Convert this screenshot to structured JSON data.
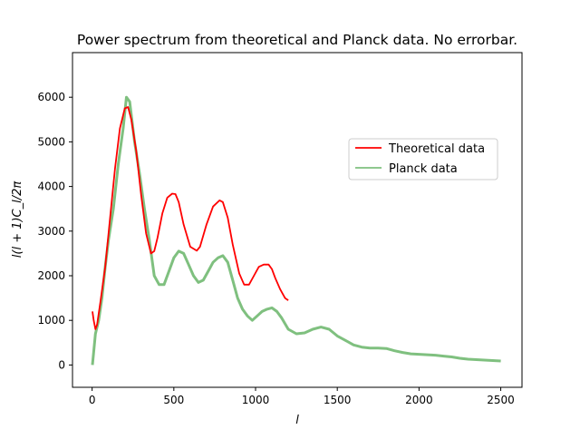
{
  "chart_data": {
    "type": "line",
    "title": "Power spectrum from theoretical and Planck data. No errorbar.",
    "xlabel": "l",
    "ylabel": "l(l + 1)C_l/2π",
    "xlim": [
      -120,
      2630
    ],
    "ylim": [
      -500,
      7000
    ],
    "xticks": [
      0,
      500,
      1000,
      1500,
      2000,
      2500
    ],
    "yticks": [
      0,
      1000,
      2000,
      3000,
      4000,
      5000,
      6000
    ],
    "xtick_labels": [
      "0",
      "500",
      "1000",
      "1500",
      "2000",
      "2500"
    ],
    "ytick_labels": [
      "0",
      "1000",
      "2000",
      "3000",
      "4000",
      "5000",
      "6000"
    ],
    "grid": false,
    "legend_position": "center-right",
    "series": [
      {
        "name": "Theoretical data",
        "color": "#ff0000",
        "x": [
          2,
          10,
          20,
          30,
          50,
          80,
          110,
          140,
          170,
          200,
          220,
          240,
          270,
          300,
          330,
          360,
          380,
          400,
          430,
          460,
          490,
          510,
          530,
          560,
          600,
          640,
          660,
          700,
          740,
          780,
          800,
          830,
          860,
          900,
          930,
          960,
          990,
          1020,
          1050,
          1080,
          1100,
          1120,
          1150,
          1180,
          1200
        ],
        "y": [
          1200,
          1000,
          800,
          900,
          1400,
          2200,
          3300,
          4400,
          5300,
          5750,
          5780,
          5500,
          4800,
          3800,
          2950,
          2500,
          2550,
          2850,
          3400,
          3750,
          3840,
          3830,
          3650,
          3150,
          2650,
          2560,
          2650,
          3150,
          3550,
          3690,
          3650,
          3300,
          2700,
          2050,
          1800,
          1800,
          2000,
          2200,
          2250,
          2250,
          2150,
          1950,
          1700,
          1500,
          1450
        ]
      },
      {
        "name": "Planck data",
        "color": "#5fb05f",
        "x": [
          2,
          20,
          40,
          60,
          80,
          100,
          130,
          160,
          190,
          210,
          230,
          260,
          290,
          320,
          350,
          380,
          410,
          440,
          470,
          500,
          530,
          560,
          590,
          620,
          650,
          680,
          710,
          740,
          770,
          800,
          830,
          860,
          890,
          920,
          950,
          980,
          1010,
          1040,
          1070,
          1100,
          1130,
          1160,
          1200,
          1250,
          1300,
          1350,
          1400,
          1450,
          1500,
          1550,
          1600,
          1650,
          1700,
          1750,
          1800,
          1850,
          1900,
          1950,
          2000,
          2050,
          2100,
          2150,
          2200,
          2250,
          2300,
          2350,
          2400,
          2450,
          2500
        ],
        "y": [
          0,
          700,
          1000,
          1500,
          2200,
          2800,
          3500,
          4500,
          5300,
          6000,
          5900,
          5000,
          4300,
          3500,
          2800,
          2000,
          1800,
          1800,
          2100,
          2400,
          2550,
          2500,
          2250,
          2000,
          1850,
          1900,
          2100,
          2300,
          2400,
          2450,
          2300,
          1900,
          1500,
          1250,
          1100,
          1000,
          1100,
          1200,
          1250,
          1280,
          1200,
          1050,
          800,
          700,
          720,
          800,
          850,
          800,
          650,
          550,
          450,
          400,
          380,
          380,
          370,
          320,
          280,
          250,
          240,
          230,
          220,
          200,
          180,
          150,
          130,
          120,
          110,
          100,
          90
        ]
      }
    ]
  }
}
